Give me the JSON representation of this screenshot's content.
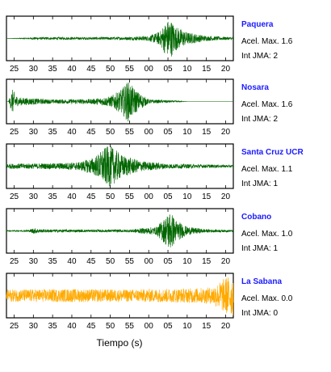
{
  "chart_data": {
    "type": "line",
    "xlabel": "Tiempo (s)",
    "x_tick_labels": [
      "25",
      "30",
      "35",
      "40",
      "45",
      "50",
      "55",
      "00",
      "05",
      "10",
      "15",
      "20"
    ],
    "x_range_seconds": [
      23,
      82
    ],
    "panels": [
      {
        "station": "Paquera",
        "accel_label": "Acel. Max. 1.6",
        "jma_label": "Int JMA: 2",
        "color": "#006600",
        "waveform": [
          {
            "t": 23,
            "amp": 0.0
          },
          {
            "t": 29,
            "amp": 0.03
          },
          {
            "t": 30,
            "amp": 0.06
          },
          {
            "t": 45,
            "amp": 0.06
          },
          {
            "t": 55,
            "amp": 0.08
          },
          {
            "t": 60,
            "amp": 0.12
          },
          {
            "t": 63,
            "amp": 0.35
          },
          {
            "t": 64,
            "amp": 0.7
          },
          {
            "t": 65.5,
            "amp": 1.0
          },
          {
            "t": 67,
            "amp": 0.6
          },
          {
            "t": 70,
            "amp": 0.3
          },
          {
            "t": 75,
            "amp": 0.12
          },
          {
            "t": 82,
            "amp": 0.06
          }
        ]
      },
      {
        "station": "Nosara",
        "accel_label": "Acel. Max. 1.6",
        "jma_label": "Int JMA: 2",
        "color": "#006600",
        "waveform": [
          {
            "t": 23.5,
            "amp": 0.0
          },
          {
            "t": 24.5,
            "amp": 0.6
          },
          {
            "t": 26,
            "amp": 0.2
          },
          {
            "t": 35,
            "amp": 0.1
          },
          {
            "t": 45,
            "amp": 0.12
          },
          {
            "t": 50,
            "amp": 0.25
          },
          {
            "t": 53,
            "amp": 0.6
          },
          {
            "t": 54.5,
            "amp": 1.0
          },
          {
            "t": 57,
            "amp": 0.5
          },
          {
            "t": 60,
            "amp": 0.1
          },
          {
            "t": 66,
            "amp": 0.05
          },
          {
            "t": 70,
            "amp": 0.0
          },
          {
            "t": 82,
            "amp": 0.0
          }
        ]
      },
      {
        "station": "Santa Cruz UCR",
        "accel_label": "Acel. Max. 1.1",
        "jma_label": "Int JMA: 1",
        "color": "#006600",
        "waveform": [
          {
            "t": 23,
            "amp": 0.12
          },
          {
            "t": 35,
            "amp": 0.14
          },
          {
            "t": 42,
            "amp": 0.2
          },
          {
            "t": 46,
            "amp": 0.45
          },
          {
            "t": 48.5,
            "amp": 0.9
          },
          {
            "t": 50,
            "amp": 1.0
          },
          {
            "t": 53,
            "amp": 0.55
          },
          {
            "t": 58,
            "amp": 0.25
          },
          {
            "t": 65,
            "amp": 0.12
          },
          {
            "t": 82,
            "amp": 0.06
          }
        ]
      },
      {
        "station": "Cobano",
        "accel_label": "Acel. Max. 1.0",
        "jma_label": "Int JMA: 1",
        "color": "#006600",
        "waveform": [
          {
            "t": 23,
            "amp": 0.02
          },
          {
            "t": 29,
            "amp": 0.05
          },
          {
            "t": 30,
            "amp": 0.15
          },
          {
            "t": 32,
            "amp": 0.08
          },
          {
            "t": 45,
            "amp": 0.06
          },
          {
            "t": 55,
            "amp": 0.07
          },
          {
            "t": 62,
            "amp": 0.2
          },
          {
            "t": 64,
            "amp": 0.6
          },
          {
            "t": 65.5,
            "amp": 1.0
          },
          {
            "t": 67,
            "amp": 0.55
          },
          {
            "t": 70,
            "amp": 0.2
          },
          {
            "t": 75,
            "amp": 0.08
          },
          {
            "t": 82,
            "amp": 0.05
          }
        ]
      },
      {
        "station": "La Sabana",
        "accel_label": "Acel. Max. 0.0",
        "jma_label": "Int JMA: 0",
        "color": "#ffaa00",
        "waveform": [
          {
            "t": 23,
            "amp": 0.3
          },
          {
            "t": 40,
            "amp": 0.32
          },
          {
            "t": 55,
            "amp": 0.3
          },
          {
            "t": 70,
            "amp": 0.35
          },
          {
            "t": 76,
            "amp": 0.4
          },
          {
            "t": 78,
            "amp": 0.6
          },
          {
            "t": 80,
            "amp": 0.9
          },
          {
            "t": 82,
            "amp": 1.0
          }
        ]
      }
    ]
  }
}
